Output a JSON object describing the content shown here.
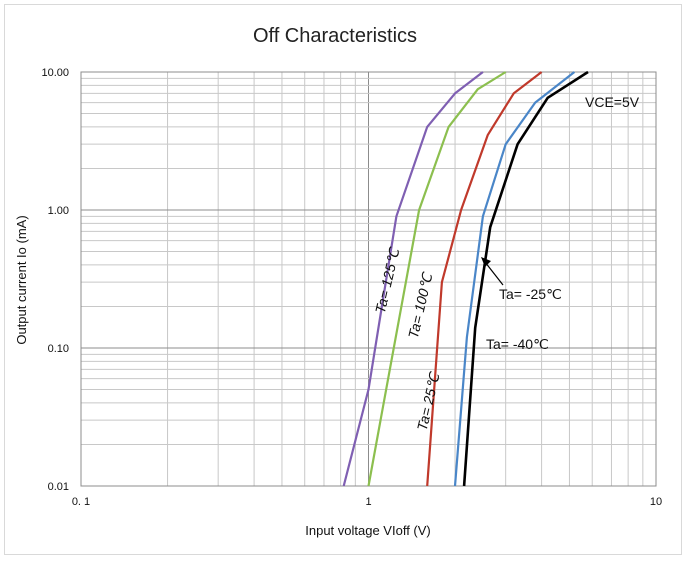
{
  "chart_data": {
    "type": "line",
    "title": "Off Characteristics",
    "xlabel": "Input voltage VIoff (V)",
    "ylabel": "Output current Io (mA)",
    "x_scale": "log",
    "y_scale": "log",
    "xlim": [
      0.1,
      10
    ],
    "ylim": [
      0.01,
      10
    ],
    "x_ticks": [
      "0. 1",
      "1",
      "10"
    ],
    "y_ticks": [
      "0.01",
      "0.10",
      "1.00",
      "10.00"
    ],
    "grid": true,
    "condition_label": "VCE=5V",
    "colors": {
      "ta125": "#7f5fb2",
      "ta100": "#8cbf4f",
      "ta25": "#c0392b",
      "tam25": "#4a86c8",
      "tam40": "#000000",
      "grid_minor": "#c8c8c8",
      "grid_major": "#8c8c8c"
    },
    "series": [
      {
        "name": "Ta= 125℃",
        "color_key": "ta125",
        "x": [
          0.82,
          1.0,
          1.25,
          1.6,
          2.0,
          2.5
        ],
        "y": [
          0.01,
          0.05,
          0.9,
          4.0,
          7.0,
          10.0
        ]
      },
      {
        "name": "Ta= 100℃",
        "color_key": "ta100",
        "x": [
          1.0,
          1.2,
          1.5,
          1.9,
          2.4,
          3.0
        ],
        "y": [
          0.01,
          0.08,
          1.0,
          4.0,
          7.5,
          10.0
        ]
      },
      {
        "name": "Ta= 25℃",
        "color_key": "ta25",
        "x": [
          1.6,
          1.8,
          2.1,
          2.6,
          3.2,
          4.0
        ],
        "y": [
          0.01,
          0.3,
          1.0,
          3.5,
          7.0,
          10.0
        ]
      },
      {
        "name": "Ta= -25℃",
        "color_key": "tam25",
        "x": [
          2.0,
          2.2,
          2.5,
          3.0,
          3.8,
          5.2
        ],
        "y": [
          0.01,
          0.12,
          0.9,
          3.0,
          6.0,
          10.0
        ]
      },
      {
        "name": "Ta= -40℃",
        "color_key": "tam40",
        "x": [
          2.15,
          2.35,
          2.65,
          3.3,
          4.2,
          5.8
        ],
        "y": [
          0.01,
          0.14,
          0.75,
          3.0,
          6.5,
          10.0
        ]
      }
    ],
    "annotations": [
      {
        "text": "Ta= 125℃",
        "rotated": true
      },
      {
        "text": "Ta= 100℃",
        "rotated": true
      },
      {
        "text": "Ta= 25℃",
        "rotated": true
      },
      {
        "text": "Ta= -25℃",
        "rotated": false
      },
      {
        "text": "Ta= -40℃",
        "rotated": false
      }
    ]
  }
}
